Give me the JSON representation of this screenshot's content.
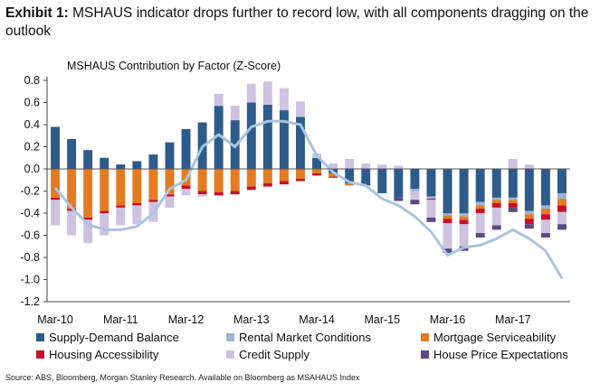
{
  "exhibit": {
    "label": "Exhibit 1:",
    "title": "MSHAUS indicator drops further to record low, with all components dragging on the outlook"
  },
  "source": "Source: ABS, Bloomberg, Morgan Stanley Research. Available on Bloomberg as MSAHAUS Index",
  "chart_data": {
    "type": "bar",
    "title": "MSHAUS Contribution by Factor (Z-Score)",
    "stacked": true,
    "ylim": [
      -1.2,
      0.8
    ],
    "yticks": [
      "0.8",
      "0.6",
      "0.4",
      "0.2",
      "0.0",
      "-0.2",
      "-0.4",
      "-0.6",
      "-0.8",
      "-1.0",
      "-1.2"
    ],
    "xtick_labels": [
      "Mar-10",
      "Mar-11",
      "Mar-12",
      "Mar-13",
      "Mar-14",
      "Mar-15",
      "Mar-16",
      "Mar-17"
    ],
    "categories": [
      "Mar-10",
      "Jun-10",
      "Sep-10",
      "Dec-10",
      "Mar-11",
      "Jun-11",
      "Sep-11",
      "Dec-11",
      "Mar-12",
      "Jun-12",
      "Sep-12",
      "Dec-12",
      "Mar-13",
      "Jun-13",
      "Sep-13",
      "Dec-13",
      "Mar-14",
      "Jun-14",
      "Sep-14",
      "Dec-14",
      "Mar-15",
      "Jun-15",
      "Sep-15",
      "Dec-15",
      "Mar-16",
      "Jun-16",
      "Sep-16",
      "Dec-16",
      "Mar-17",
      "Jun-17",
      "Sep-17",
      "Dec-17"
    ],
    "series": [
      {
        "name": "Supply-Demand Balance",
        "color": "#2e5b8a",
        "values": [
          0.38,
          0.27,
          0.17,
          0.1,
          0.04,
          0.07,
          0.13,
          0.24,
          0.36,
          0.42,
          0.57,
          0.44,
          0.6,
          0.58,
          0.53,
          0.47,
          0.1,
          -0.04,
          -0.13,
          -0.15,
          -0.22,
          -0.26,
          -0.18,
          -0.25,
          -0.4,
          -0.4,
          -0.3,
          -0.26,
          -0.26,
          -0.38,
          -0.33,
          -0.22
        ]
      },
      {
        "name": "Rental Market Conditions",
        "color": "#9db5d3",
        "values": [
          0.0,
          0.0,
          0.0,
          0.0,
          0.0,
          0.0,
          0.0,
          0.0,
          0.0,
          0.0,
          0.0,
          0.0,
          0.0,
          0.0,
          0.0,
          0.0,
          0.0,
          0.0,
          0.0,
          0.0,
          0.0,
          0.0,
          -0.02,
          -0.02,
          -0.02,
          -0.03,
          -0.03,
          -0.02,
          -0.02,
          -0.03,
          -0.03,
          -0.05
        ]
      },
      {
        "name": "Mortgage Serviceability",
        "color": "#e47b22",
        "values": [
          -0.26,
          -0.36,
          -0.44,
          -0.38,
          -0.33,
          -0.31,
          -0.28,
          -0.23,
          -0.15,
          -0.2,
          -0.21,
          -0.2,
          -0.16,
          -0.13,
          -0.11,
          -0.09,
          -0.04,
          -0.03,
          -0.02,
          0.0,
          0.0,
          0.0,
          0.0,
          0.0,
          -0.03,
          -0.03,
          -0.03,
          -0.03,
          -0.03,
          -0.04,
          -0.05,
          -0.06
        ]
      },
      {
        "name": "Housing Accessibility",
        "color": "#c8102e",
        "values": [
          -0.02,
          -0.02,
          -0.02,
          -0.02,
          -0.02,
          -0.02,
          -0.02,
          -0.02,
          -0.03,
          -0.03,
          -0.03,
          -0.03,
          -0.03,
          -0.03,
          -0.03,
          -0.02,
          -0.02,
          -0.01,
          0.0,
          0.0,
          0.0,
          0.0,
          0.0,
          -0.01,
          -0.04,
          -0.04,
          -0.04,
          -0.04,
          -0.04,
          -0.05,
          -0.05,
          -0.06
        ]
      },
      {
        "name": "Credit Supply",
        "color": "#cdc3e0",
        "values": [
          -0.23,
          -0.22,
          -0.21,
          -0.2,
          -0.16,
          -0.17,
          -0.18,
          -0.1,
          -0.06,
          -0.02,
          0.11,
          0.13,
          0.17,
          0.21,
          0.2,
          0.14,
          0.04,
          0.05,
          0.09,
          0.05,
          0.04,
          0.03,
          -0.08,
          -0.16,
          -0.23,
          -0.2,
          -0.18,
          -0.16,
          0.09,
          0.04,
          -0.12,
          -0.11
        ]
      },
      {
        "name": "House Price Expectations",
        "color": "#5a4a82",
        "values": [
          0.0,
          0.0,
          0.0,
          0.0,
          0.0,
          0.0,
          0.0,
          0.0,
          0.0,
          0.0,
          0.0,
          0.0,
          0.0,
          0.0,
          0.0,
          0.0,
          0.0,
          0.0,
          0.0,
          0.0,
          0.0,
          -0.03,
          -0.04,
          -0.04,
          -0.04,
          -0.04,
          -0.04,
          -0.04,
          -0.04,
          -0.04,
          -0.04,
          -0.05
        ]
      }
    ],
    "line": {
      "name": "MSHAUS",
      "color": "#a9c4e2",
      "values": [
        -0.17,
        -0.35,
        -0.5,
        -0.55,
        -0.55,
        -0.52,
        -0.4,
        -0.18,
        -0.1,
        0.2,
        0.31,
        0.2,
        0.38,
        0.43,
        0.43,
        0.4,
        0.12,
        -0.03,
        -0.12,
        -0.15,
        -0.27,
        -0.33,
        -0.43,
        -0.57,
        -0.78,
        -0.71,
        -0.69,
        -0.63,
        -0.55,
        -0.63,
        -0.74,
        -0.99
      ]
    }
  }
}
